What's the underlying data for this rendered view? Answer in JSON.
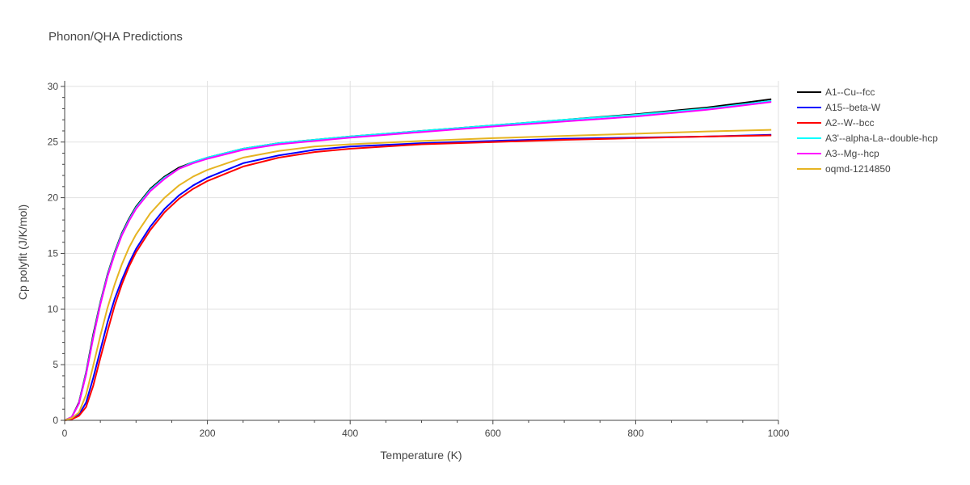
{
  "chart_data": {
    "type": "line",
    "title": "Phonon/QHA Predictions",
    "xlabel": "Temperature (K)",
    "ylabel": "Cp polyfit (J/K/mol)",
    "xlim": [
      0,
      1000
    ],
    "ylim": [
      0,
      30.5
    ],
    "xticks": [
      0,
      200,
      400,
      600,
      800,
      1000
    ],
    "yticks": [
      0,
      5,
      10,
      15,
      20,
      25,
      30
    ],
    "grid": true,
    "legend_position": "right",
    "x": [
      0,
      10,
      20,
      30,
      40,
      50,
      60,
      70,
      80,
      90,
      100,
      120,
      140,
      160,
      180,
      200,
      250,
      300,
      350,
      400,
      500,
      600,
      700,
      800,
      900,
      990
    ],
    "series": [
      {
        "name": "A1--Cu--fcc",
        "color": "#000000",
        "values": [
          0,
          0.3,
          1.6,
          4.3,
          7.7,
          10.6,
          13.1,
          15.1,
          16.8,
          18.1,
          19.2,
          20.8,
          21.9,
          22.7,
          23.2,
          23.6,
          24.4,
          24.9,
          25.2,
          25.5,
          26.0,
          26.5,
          27.0,
          27.5,
          28.1,
          28.85
        ]
      },
      {
        "name": "A15--beta-W",
        "color": "#0000ff",
        "values": [
          0,
          0.2,
          0.5,
          1.6,
          3.8,
          6.3,
          8.8,
          10.9,
          12.6,
          14.1,
          15.4,
          17.4,
          19.0,
          20.2,
          21.1,
          21.8,
          23.1,
          23.8,
          24.3,
          24.6,
          24.9,
          25.1,
          25.3,
          25.4,
          25.5,
          25.65
        ]
      },
      {
        "name": "A2--W--bcc",
        "color": "#ff0000",
        "values": [
          0,
          0.1,
          0.4,
          1.2,
          3.1,
          5.6,
          8.0,
          10.3,
          12.2,
          13.8,
          15.1,
          17.1,
          18.7,
          19.9,
          20.8,
          21.5,
          22.8,
          23.6,
          24.1,
          24.4,
          24.8,
          25.0,
          25.2,
          25.35,
          25.5,
          25.6
        ]
      },
      {
        "name": "A3'--alpha-La--double-hcp",
        "color": "#00ffff",
        "values": [
          0,
          0.3,
          1.5,
          4.2,
          7.5,
          10.5,
          13.0,
          15.0,
          16.7,
          18.0,
          19.1,
          20.7,
          21.8,
          22.6,
          23.2,
          23.6,
          24.4,
          24.9,
          25.2,
          25.5,
          26.0,
          26.5,
          27.0,
          27.45,
          28.0,
          28.7
        ]
      },
      {
        "name": "A3--Mg--hcp",
        "color": "#ff00ff",
        "values": [
          0,
          0.3,
          1.5,
          4.1,
          7.4,
          10.4,
          12.9,
          14.9,
          16.6,
          17.9,
          19.0,
          20.6,
          21.7,
          22.6,
          23.1,
          23.5,
          24.3,
          24.8,
          25.1,
          25.4,
          25.9,
          26.4,
          26.85,
          27.3,
          27.9,
          28.6
        ]
      },
      {
        "name": "oqmd-1214850",
        "color": "#e6b422",
        "values": [
          0,
          0.2,
          0.7,
          2.3,
          4.9,
          7.6,
          10.1,
          12.2,
          14.0,
          15.5,
          16.7,
          18.6,
          20.0,
          21.1,
          21.9,
          22.5,
          23.6,
          24.2,
          24.6,
          24.8,
          25.1,
          25.35,
          25.55,
          25.75,
          25.95,
          26.1
        ]
      }
    ]
  }
}
